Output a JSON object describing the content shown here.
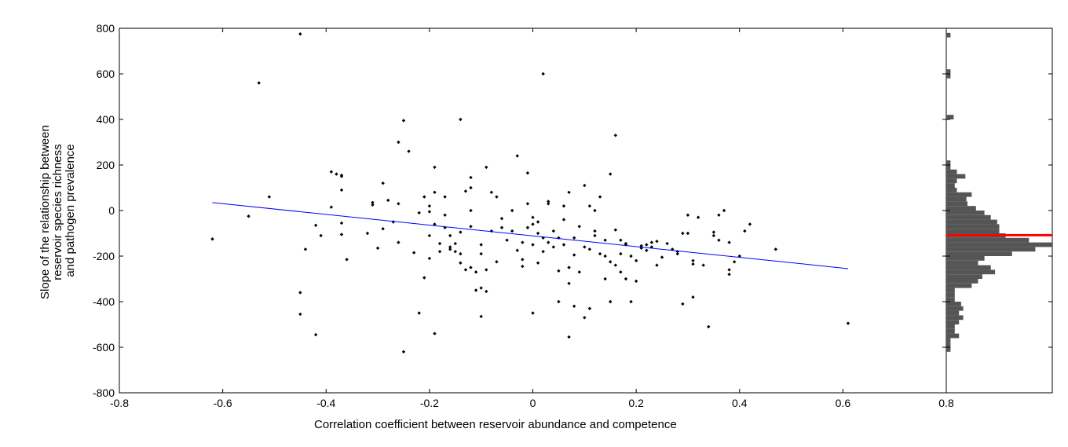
{
  "chart_data": [
    {
      "type": "scatter",
      "title": "",
      "xlabel": "Correlation coefficient between reservoir abundance and competence",
      "ylabel_lines": [
        "Slope of the relationship between",
        "reservoir species richness",
        "and pathogen prevalence"
      ],
      "xlim": [
        -0.8,
        0.8
      ],
      "ylim": [
        -800,
        800
      ],
      "xticks": [
        "-0.8",
        "-0.6",
        "-0.4",
        "-0.2",
        "0",
        "0.2",
        "0.4",
        "0.6",
        "0.8"
      ],
      "yticks": [
        "800",
        "600",
        "400",
        "200",
        "0",
        "-200",
        "-400",
        "-600",
        "-800"
      ],
      "grid": false,
      "point_color": "#000000",
      "fit_line": {
        "color": "#0000ff",
        "x": [
          -0.62,
          0.61
        ],
        "y": [
          35,
          -255
        ]
      },
      "points": [
        [
          -0.62,
          -125
        ],
        [
          -0.55,
          -25
        ],
        [
          -0.53,
          560
        ],
        [
          -0.51,
          60
        ],
        [
          -0.45,
          775
        ],
        [
          -0.45,
          -360
        ],
        [
          -0.45,
          -455
        ],
        [
          -0.44,
          -170
        ],
        [
          -0.42,
          -545
        ],
        [
          -0.42,
          -65
        ],
        [
          -0.41,
          -110
        ],
        [
          -0.39,
          170
        ],
        [
          -0.39,
          15
        ],
        [
          -0.38,
          160
        ],
        [
          -0.37,
          150
        ],
        [
          -0.37,
          155
        ],
        [
          -0.37,
          90
        ],
        [
          -0.37,
          -55
        ],
        [
          -0.37,
          -105
        ],
        [
          -0.36,
          -215
        ],
        [
          -0.32,
          -100
        ],
        [
          -0.31,
          25
        ],
        [
          -0.31,
          35
        ],
        [
          -0.3,
          -165
        ],
        [
          -0.29,
          120
        ],
        [
          -0.29,
          -80
        ],
        [
          -0.28,
          45
        ],
        [
          -0.27,
          -50
        ],
        [
          -0.26,
          -140
        ],
        [
          -0.26,
          300
        ],
        [
          -0.26,
          30
        ],
        [
          -0.25,
          395
        ],
        [
          -0.25,
          -620
        ],
        [
          -0.24,
          260
        ],
        [
          -0.23,
          -185
        ],
        [
          -0.22,
          -450
        ],
        [
          -0.22,
          -10
        ],
        [
          -0.21,
          -295
        ],
        [
          -0.21,
          60
        ],
        [
          -0.2,
          20
        ],
        [
          -0.2,
          -5
        ],
        [
          -0.2,
          -110
        ],
        [
          -0.2,
          -210
        ],
        [
          -0.19,
          190
        ],
        [
          -0.19,
          80
        ],
        [
          -0.19,
          -540
        ],
        [
          -0.19,
          -60
        ],
        [
          -0.18,
          -180
        ],
        [
          -0.18,
          -145
        ],
        [
          -0.17,
          -20
        ],
        [
          -0.17,
          60
        ],
        [
          -0.17,
          -75
        ],
        [
          -0.16,
          -110
        ],
        [
          -0.16,
          -160
        ],
        [
          -0.16,
          -170
        ],
        [
          -0.15,
          -180
        ],
        [
          -0.15,
          -145
        ],
        [
          -0.14,
          -95
        ],
        [
          -0.14,
          400
        ],
        [
          -0.14,
          -190
        ],
        [
          -0.14,
          -230
        ],
        [
          -0.13,
          -260
        ],
        [
          -0.13,
          85
        ],
        [
          -0.12,
          145
        ],
        [
          -0.12,
          100
        ],
        [
          -0.12,
          0
        ],
        [
          -0.12,
          -70
        ],
        [
          -0.12,
          -250
        ],
        [
          -0.11,
          -350
        ],
        [
          -0.11,
          -270
        ],
        [
          -0.1,
          -340
        ],
        [
          -0.1,
          -150
        ],
        [
          -0.1,
          -190
        ],
        [
          -0.1,
          -465
        ],
        [
          -0.09,
          -355
        ],
        [
          -0.09,
          -260
        ],
        [
          -0.09,
          190
        ],
        [
          -0.08,
          80
        ],
        [
          -0.08,
          -90
        ],
        [
          -0.07,
          60
        ],
        [
          -0.07,
          -225
        ],
        [
          -0.06,
          -35
        ],
        [
          -0.06,
          -75
        ],
        [
          -0.05,
          -130
        ],
        [
          -0.04,
          0
        ],
        [
          -0.04,
          -90
        ],
        [
          -0.03,
          -175
        ],
        [
          -0.03,
          240
        ],
        [
          -0.02,
          -245
        ],
        [
          -0.02,
          -215
        ],
        [
          -0.02,
          -140
        ],
        [
          -0.01,
          -75
        ],
        [
          -0.01,
          165
        ],
        [
          -0.01,
          30
        ],
        [
          0.0,
          -150
        ],
        [
          0.0,
          -450
        ],
        [
          0.0,
          -30
        ],
        [
          0.0,
          -60
        ],
        [
          0.01,
          -50
        ],
        [
          0.01,
          -100
        ],
        [
          0.01,
          -230
        ],
        [
          0.02,
          -180
        ],
        [
          0.02,
          600
        ],
        [
          0.02,
          -120
        ],
        [
          0.03,
          40
        ],
        [
          0.03,
          30
        ],
        [
          0.03,
          -140
        ],
        [
          0.04,
          -90
        ],
        [
          0.04,
          -160
        ],
        [
          0.05,
          -265
        ],
        [
          0.05,
          -400
        ],
        [
          0.05,
          -120
        ],
        [
          0.06,
          -150
        ],
        [
          0.06,
          20
        ],
        [
          0.06,
          -40
        ],
        [
          0.07,
          80
        ],
        [
          0.07,
          -555
        ],
        [
          0.07,
          -320
        ],
        [
          0.07,
          -250
        ],
        [
          0.08,
          -195
        ],
        [
          0.08,
          -420
        ],
        [
          0.08,
          -120
        ],
        [
          0.09,
          -70
        ],
        [
          0.09,
          -270
        ],
        [
          0.1,
          -160
        ],
        [
          0.1,
          110
        ],
        [
          0.1,
          -470
        ],
        [
          0.11,
          -430
        ],
        [
          0.11,
          20
        ],
        [
          0.11,
          -170
        ],
        [
          0.12,
          -90
        ],
        [
          0.12,
          -110
        ],
        [
          0.12,
          0
        ],
        [
          0.13,
          -190
        ],
        [
          0.13,
          60
        ],
        [
          0.14,
          -300
        ],
        [
          0.14,
          -130
        ],
        [
          0.14,
          -200
        ],
        [
          0.15,
          -225
        ],
        [
          0.15,
          -400
        ],
        [
          0.15,
          160
        ],
        [
          0.16,
          -85
        ],
        [
          0.16,
          -240
        ],
        [
          0.16,
          330
        ],
        [
          0.17,
          -190
        ],
        [
          0.17,
          -270
        ],
        [
          0.17,
          -130
        ],
        [
          0.18,
          -150
        ],
        [
          0.18,
          -145
        ],
        [
          0.18,
          -300
        ],
        [
          0.19,
          -200
        ],
        [
          0.19,
          -400
        ],
        [
          0.2,
          -220
        ],
        [
          0.2,
          -310
        ],
        [
          0.21,
          -165
        ],
        [
          0.21,
          -155
        ],
        [
          0.22,
          -150
        ],
        [
          0.22,
          -175
        ],
        [
          0.23,
          -160
        ],
        [
          0.23,
          -140
        ],
        [
          0.24,
          -135
        ],
        [
          0.24,
          -240
        ],
        [
          0.25,
          -205
        ],
        [
          0.26,
          -145
        ],
        [
          0.27,
          -170
        ],
        [
          0.28,
          -180
        ],
        [
          0.28,
          -190
        ],
        [
          0.29,
          -100
        ],
        [
          0.29,
          -410
        ],
        [
          0.3,
          -20
        ],
        [
          0.3,
          -100
        ],
        [
          0.31,
          -235
        ],
        [
          0.31,
          -220
        ],
        [
          0.31,
          -380
        ],
        [
          0.32,
          -30
        ],
        [
          0.33,
          -240
        ],
        [
          0.34,
          -510
        ],
        [
          0.35,
          -95
        ],
        [
          0.35,
          -110
        ],
        [
          0.36,
          -20
        ],
        [
          0.36,
          -130
        ],
        [
          0.37,
          0
        ],
        [
          0.38,
          -260
        ],
        [
          0.38,
          -280
        ],
        [
          0.38,
          -140
        ],
        [
          0.39,
          -225
        ],
        [
          0.4,
          -200
        ],
        [
          0.41,
          -90
        ],
        [
          0.42,
          -60
        ],
        [
          0.47,
          -170
        ],
        [
          0.61,
          -495
        ]
      ]
    },
    {
      "type": "bar",
      "orientation": "horizontal",
      "title": "",
      "xlim": [
        0,
        1
      ],
      "ylim": [
        -800,
        800
      ],
      "bar_color": "#555555",
      "bin_width": 20,
      "bin_centers": [
        770,
        610,
        590,
        410,
        210,
        190,
        170,
        150,
        130,
        110,
        90,
        70,
        50,
        30,
        10,
        -10,
        -30,
        -50,
        -70,
        -90,
        -110,
        -130,
        -150,
        -170,
        -190,
        -210,
        -230,
        -250,
        -270,
        -290,
        -310,
        -330,
        -350,
        -370,
        -390,
        -410,
        -430,
        -450,
        -470,
        -490,
        -510,
        -530,
        -550,
        -570,
        -590,
        -610
      ],
      "values": [
        0.04,
        0.04,
        0.04,
        0.07,
        0.04,
        0.04,
        0.1,
        0.18,
        0.1,
        0.08,
        0.1,
        0.24,
        0.19,
        0.2,
        0.28,
        0.36,
        0.42,
        0.48,
        0.5,
        0.5,
        0.56,
        0.78,
        1.0,
        0.84,
        0.62,
        0.36,
        0.3,
        0.42,
        0.46,
        0.34,
        0.3,
        0.24,
        0.08,
        0.08,
        0.08,
        0.14,
        0.16,
        0.12,
        0.16,
        0.12,
        0.08,
        0.08,
        0.12,
        0.04,
        0.04,
        0.04
      ],
      "mean_line": {
        "y": -108,
        "color": "#ff0000"
      }
    }
  ]
}
